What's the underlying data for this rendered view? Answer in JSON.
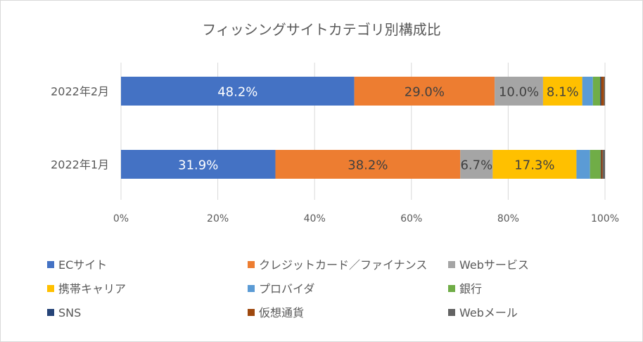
{
  "chart_data": {
    "type": "bar",
    "orientation": "horizontal",
    "stacked": "percent",
    "title": "フィッシングサイトカテゴリ別構成比",
    "categories": [
      "2022年2月",
      "2022年1月"
    ],
    "xlim": [
      0,
      100
    ],
    "x_ticks": [
      "0%",
      "20%",
      "40%",
      "60%",
      "80%",
      "100%"
    ],
    "grid": true,
    "legend_position": "bottom",
    "series": [
      {
        "name": "ECサイト",
        "color": "#4472c4",
        "values": [
          48.2,
          31.9
        ],
        "labels": [
          "48.2%",
          "31.9%"
        ],
        "label_color": "#ffffff"
      },
      {
        "name": "クレジットカード／ファイナンス",
        "color": "#ed7d31",
        "values": [
          29.0,
          38.2
        ],
        "labels": [
          "29.0%",
          "38.2%"
        ],
        "label_color": "#404040"
      },
      {
        "name": "Webサービス",
        "color": "#a5a5a5",
        "values": [
          10.0,
          6.7
        ],
        "labels": [
          "10.0%",
          "6.7%"
        ],
        "label_color": "#404040"
      },
      {
        "name": "携帯キャリア",
        "color": "#ffc000",
        "values": [
          8.1,
          17.3
        ],
        "labels": [
          "8.1%",
          "17.3%"
        ],
        "label_color": "#404040"
      },
      {
        "name": "プロバイダ",
        "color": "#5b9bd5",
        "values": [
          2.2,
          2.8
        ],
        "labels": [
          "",
          ""
        ],
        "label_color": "#404040"
      },
      {
        "name": "銀行",
        "color": "#70ad47",
        "values": [
          1.5,
          2.2
        ],
        "labels": [
          "",
          ""
        ],
        "label_color": "#404040"
      },
      {
        "name": "SNS",
        "color": "#264478",
        "values": [
          0.2,
          0.1
        ],
        "labels": [
          "",
          ""
        ],
        "label_color": "#404040"
      },
      {
        "name": "仮想通貨",
        "color": "#9e480e",
        "values": [
          0.6,
          0.3
        ],
        "labels": [
          "",
          ""
        ],
        "label_color": "#404040"
      },
      {
        "name": "Webメール",
        "color": "#636363",
        "values": [
          0.2,
          0.5
        ],
        "labels": [
          "",
          ""
        ],
        "label_color": "#404040"
      }
    ]
  }
}
